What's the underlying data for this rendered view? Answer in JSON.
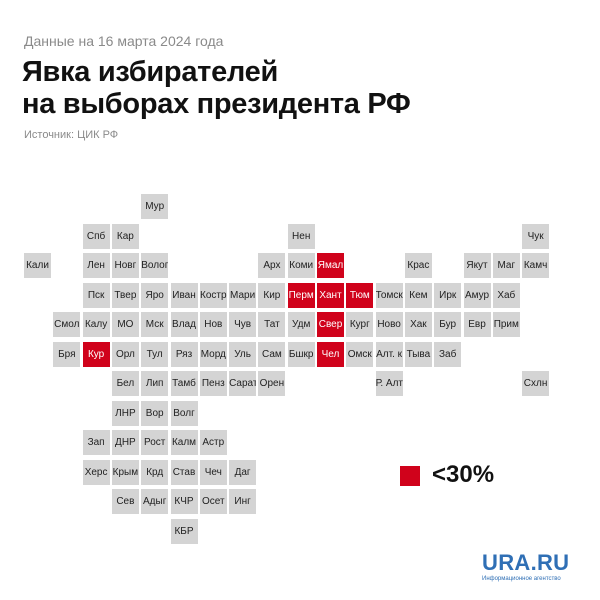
{
  "header": {
    "date_line": "Данные на 16 марта 2024 года",
    "title_line1": "Явка избирателей",
    "title_line2": "на выборах президента РФ",
    "source": "Источник: ЦИК РФ"
  },
  "colors": {
    "low_turnout": "#d0021b",
    "normal": "#d4d4d4"
  },
  "legend": {
    "label": "<30%"
  },
  "logo": {
    "text": "URA.RU",
    "subtitle": "Информационное агентство"
  },
  "map": {
    "regions": [
      {
        "label": "Мур",
        "col": 5,
        "row": 0,
        "low": false
      },
      {
        "label": "Спб",
        "col": 3,
        "row": 1,
        "low": false
      },
      {
        "label": "Кар",
        "col": 4,
        "row": 1,
        "low": false
      },
      {
        "label": "Нен",
        "col": 10,
        "row": 1,
        "low": false
      },
      {
        "label": "Чук",
        "col": 18,
        "row": 1,
        "low": false
      },
      {
        "label": "Кали",
        "col": 1,
        "row": 2,
        "low": false
      },
      {
        "label": "Лен",
        "col": 3,
        "row": 2,
        "low": false
      },
      {
        "label": "Новг",
        "col": 4,
        "row": 2,
        "low": false
      },
      {
        "label": "Волог",
        "col": 5,
        "row": 2,
        "low": false
      },
      {
        "label": "Арх",
        "col": 9,
        "row": 2,
        "low": false
      },
      {
        "label": "Коми",
        "col": 10,
        "row": 2,
        "low": false
      },
      {
        "label": "Ямал",
        "col": 11,
        "row": 2,
        "low": true
      },
      {
        "label": "Крас",
        "col": 14,
        "row": 2,
        "low": false
      },
      {
        "label": "Якут",
        "col": 16,
        "row": 2,
        "low": false
      },
      {
        "label": "Маг",
        "col": 17,
        "row": 2,
        "low": false
      },
      {
        "label": "Камч",
        "col": 18,
        "row": 2,
        "low": false
      },
      {
        "label": "Пск",
        "col": 3,
        "row": 3,
        "low": false
      },
      {
        "label": "Твер",
        "col": 4,
        "row": 3,
        "low": false
      },
      {
        "label": "Яро",
        "col": 5,
        "row": 3,
        "low": false
      },
      {
        "label": "Иван",
        "col": 6,
        "row": 3,
        "low": false
      },
      {
        "label": "Костр",
        "col": 7,
        "row": 3,
        "low": false
      },
      {
        "label": "Мари",
        "col": 8,
        "row": 3,
        "low": false
      },
      {
        "label": "Кир",
        "col": 9,
        "row": 3,
        "low": false
      },
      {
        "label": "Перм",
        "col": 10,
        "row": 3,
        "low": true
      },
      {
        "label": "Хант",
        "col": 11,
        "row": 3,
        "low": true
      },
      {
        "label": "Тюм",
        "col": 12,
        "row": 3,
        "low": true
      },
      {
        "label": "Томск",
        "col": 13,
        "row": 3,
        "low": false
      },
      {
        "label": "Кем",
        "col": 14,
        "row": 3,
        "low": false
      },
      {
        "label": "Ирк",
        "col": 15,
        "row": 3,
        "low": false
      },
      {
        "label": "Амур",
        "col": 16,
        "row": 3,
        "low": false
      },
      {
        "label": "Хаб",
        "col": 17,
        "row": 3,
        "low": false
      },
      {
        "label": "Смол",
        "col": 2,
        "row": 4,
        "low": false
      },
      {
        "label": "Калу",
        "col": 3,
        "row": 4,
        "low": false
      },
      {
        "label": "МО",
        "col": 4,
        "row": 4,
        "low": false
      },
      {
        "label": "Мск",
        "col": 5,
        "row": 4,
        "low": false
      },
      {
        "label": "Влад",
        "col": 6,
        "row": 4,
        "low": false
      },
      {
        "label": "Нов",
        "col": 7,
        "row": 4,
        "low": false
      },
      {
        "label": "Чув",
        "col": 8,
        "row": 4,
        "low": false
      },
      {
        "label": "Тат",
        "col": 9,
        "row": 4,
        "low": false
      },
      {
        "label": "Удм",
        "col": 10,
        "row": 4,
        "low": false
      },
      {
        "label": "Свер",
        "col": 11,
        "row": 4,
        "low": true
      },
      {
        "label": "Кург",
        "col": 12,
        "row": 4,
        "low": false
      },
      {
        "label": "Ново",
        "col": 13,
        "row": 4,
        "low": false
      },
      {
        "label": "Хак",
        "col": 14,
        "row": 4,
        "low": false
      },
      {
        "label": "Бур",
        "col": 15,
        "row": 4,
        "low": false
      },
      {
        "label": "Евр",
        "col": 16,
        "row": 4,
        "low": false
      },
      {
        "label": "Прим",
        "col": 17,
        "row": 4,
        "low": false
      },
      {
        "label": "Бря",
        "col": 2,
        "row": 5,
        "low": false
      },
      {
        "label": "Кур",
        "col": 3,
        "row": 5,
        "low": true
      },
      {
        "label": "Орл",
        "col": 4,
        "row": 5,
        "low": false
      },
      {
        "label": "Тул",
        "col": 5,
        "row": 5,
        "low": false
      },
      {
        "label": "Ряз",
        "col": 6,
        "row": 5,
        "low": false
      },
      {
        "label": "Морд",
        "col": 7,
        "row": 5,
        "low": false
      },
      {
        "label": "Уль",
        "col": 8,
        "row": 5,
        "low": false
      },
      {
        "label": "Сам",
        "col": 9,
        "row": 5,
        "low": false
      },
      {
        "label": "Бшкр",
        "col": 10,
        "row": 5,
        "low": false
      },
      {
        "label": "Чел",
        "col": 11,
        "row": 5,
        "low": true
      },
      {
        "label": "Омск",
        "col": 12,
        "row": 5,
        "low": false
      },
      {
        "label": "Алт. к",
        "col": 13,
        "row": 5,
        "low": false
      },
      {
        "label": "Тыва",
        "col": 14,
        "row": 5,
        "low": false
      },
      {
        "label": "Заб",
        "col": 15,
        "row": 5,
        "low": false
      },
      {
        "label": "Бел",
        "col": 4,
        "row": 6,
        "low": false
      },
      {
        "label": "Лип",
        "col": 5,
        "row": 6,
        "low": false
      },
      {
        "label": "Тамб",
        "col": 6,
        "row": 6,
        "low": false
      },
      {
        "label": "Пенз",
        "col": 7,
        "row": 6,
        "low": false
      },
      {
        "label": "Сарат",
        "col": 8,
        "row": 6,
        "low": false
      },
      {
        "label": "Орен",
        "col": 9,
        "row": 6,
        "low": false
      },
      {
        "label": "Р. Алт",
        "col": 13,
        "row": 6,
        "low": false
      },
      {
        "label": "Схлн",
        "col": 18,
        "row": 6,
        "low": false
      },
      {
        "label": "ЛНР",
        "col": 4,
        "row": 7,
        "low": false
      },
      {
        "label": "Вор",
        "col": 5,
        "row": 7,
        "low": false
      },
      {
        "label": "Волг",
        "col": 6,
        "row": 7,
        "low": false
      },
      {
        "label": "Зап",
        "col": 3,
        "row": 8,
        "low": false
      },
      {
        "label": "ДНР",
        "col": 4,
        "row": 8,
        "low": false
      },
      {
        "label": "Рост",
        "col": 5,
        "row": 8,
        "low": false
      },
      {
        "label": "Калм",
        "col": 6,
        "row": 8,
        "low": false
      },
      {
        "label": "Астр",
        "col": 7,
        "row": 8,
        "low": false
      },
      {
        "label": "Херс",
        "col": 3,
        "row": 9,
        "low": false
      },
      {
        "label": "Крым",
        "col": 4,
        "row": 9,
        "low": false
      },
      {
        "label": "Крд",
        "col": 5,
        "row": 9,
        "low": false
      },
      {
        "label": "Став",
        "col": 6,
        "row": 9,
        "low": false
      },
      {
        "label": "Чеч",
        "col": 7,
        "row": 9,
        "low": false
      },
      {
        "label": "Даг",
        "col": 8,
        "row": 9,
        "low": false
      },
      {
        "label": "Сев",
        "col": 4,
        "row": 10,
        "low": false
      },
      {
        "label": "Адыг",
        "col": 5,
        "row": 10,
        "low": false
      },
      {
        "label": "КЧР",
        "col": 6,
        "row": 10,
        "low": false
      },
      {
        "label": "Осет",
        "col": 7,
        "row": 10,
        "low": false
      },
      {
        "label": "Инг",
        "col": 8,
        "row": 10,
        "low": false
      },
      {
        "label": "КБР",
        "col": 6,
        "row": 11,
        "low": false
      }
    ]
  }
}
